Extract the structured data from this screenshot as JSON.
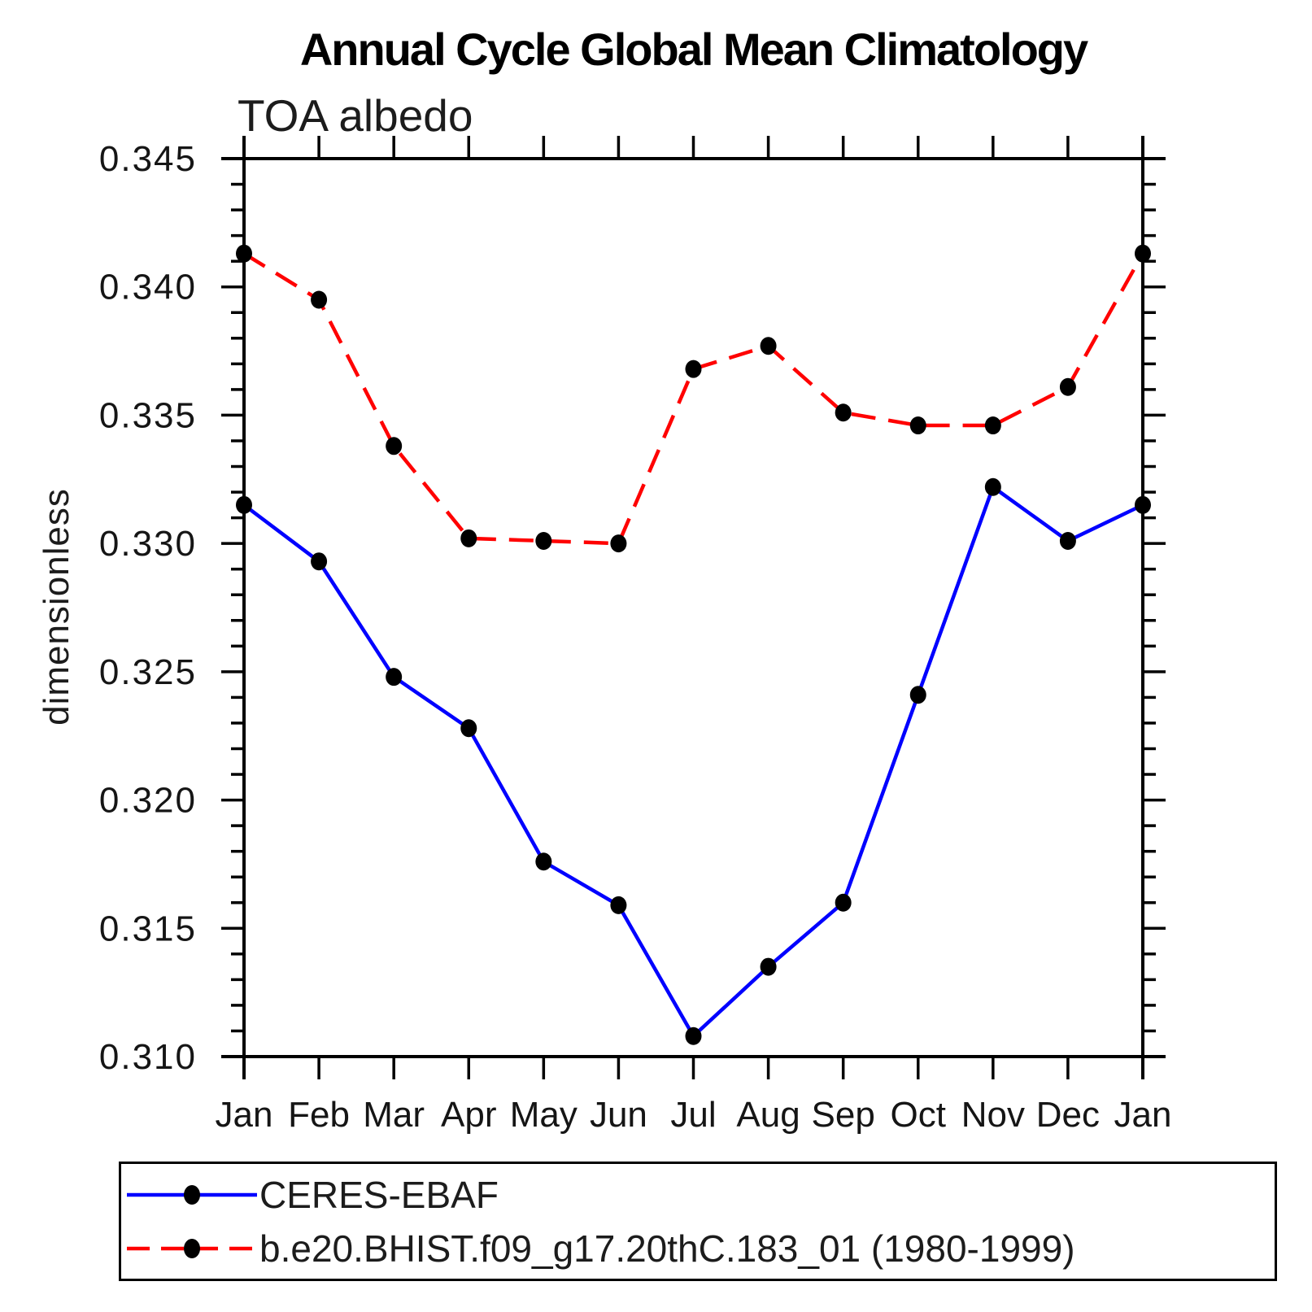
{
  "chart_data": {
    "type": "line",
    "title": "Annual Cycle Global Mean Climatology",
    "subtitle": "TOA albedo",
    "ylabel": "dimensionless",
    "xlabel": "",
    "categories": [
      "Jan",
      "Feb",
      "Mar",
      "Apr",
      "May",
      "Jun",
      "Jul",
      "Aug",
      "Sep",
      "Oct",
      "Nov",
      "Dec",
      "Jan"
    ],
    "ylim": [
      0.31,
      0.345
    ],
    "y_major_step": 0.005,
    "y_minor_step": 0.001,
    "grid": false,
    "legend_position": "bottom-left-box",
    "axis_color": "#000000",
    "marker_shape": "filled-circle",
    "y_ticks": [
      {
        "value": 0.345,
        "label": "0.345"
      },
      {
        "value": 0.34,
        "label": "0.340"
      },
      {
        "value": 0.335,
        "label": "0.335"
      },
      {
        "value": 0.33,
        "label": "0.330"
      },
      {
        "value": 0.325,
        "label": "0.325"
      },
      {
        "value": 0.32,
        "label": "0.320"
      },
      {
        "value": 0.315,
        "label": "0.315"
      },
      {
        "value": 0.31,
        "label": "0.310"
      }
    ],
    "series": [
      {
        "name": "CERES-EBAF",
        "color": "#0000ff",
        "style": "solid",
        "marker": "filled-circle",
        "marker_color": "#000000",
        "values": [
          0.3315,
          0.3293,
          0.3248,
          0.3228,
          0.3176,
          0.3159,
          0.3108,
          0.3135,
          0.316,
          0.3241,
          0.3322,
          0.3301,
          0.3315
        ]
      },
      {
        "name": "b.e20.BHIST.f09_g17.20thC.183_01 (1980-1999)",
        "color": "#ff0000",
        "style": "dashed",
        "marker": "filled-circle",
        "marker_color": "#000000",
        "values": [
          0.3413,
          0.3395,
          0.3338,
          0.3302,
          0.3301,
          0.33,
          0.3368,
          0.3377,
          0.3351,
          0.3346,
          0.3346,
          0.3361,
          0.3413
        ]
      }
    ]
  }
}
